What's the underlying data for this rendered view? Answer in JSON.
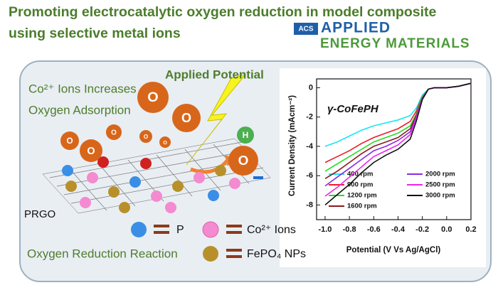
{
  "header": {
    "title_line1": "Promoting electrocatalytic oxygen reduction in model composite",
    "title_line2": "using selective metal ions"
  },
  "logo": {
    "acs": "ACS",
    "line1": "APPLIED",
    "line2": "ENERGY MATERIALS"
  },
  "illustration": {
    "co_line1": "Co²⁺ Ions Increases",
    "co_line2": "Oxygen Adsorption",
    "applied_potential": "Applied Potential",
    "oxygen_symbol": "O",
    "hydrogen_symbol": "H",
    "substrate": "PRGO",
    "reaction": "Oxygen Reduction Reaction",
    "legend_p": "P",
    "legend_co": "Co²⁺ Ions",
    "legend_fepo4": "FePO₄ NPs"
  },
  "chart_data": {
    "type": "line",
    "annotation": "γ-CoFePH",
    "xlabel": "Potential (V Vs Ag/AgCl)",
    "ylabel": "Current Density (mAcm⁻²)",
    "x": [
      -1.0,
      -0.9,
      -0.8,
      -0.7,
      -0.6,
      -0.5,
      -0.4,
      -0.3,
      -0.25,
      -0.2,
      -0.15,
      -0.1,
      0,
      0.1,
      0.2
    ],
    "xlim": [
      -1.07,
      0.2
    ],
    "xticks": [
      {
        "value": -1,
        "label": "-1.0"
      },
      -0.8,
      -0.6,
      -0.4,
      -0.2,
      {
        "value": 0,
        "label": "0.0"
      },
      0.2
    ],
    "ylim": [
      -9,
      0.6
    ],
    "yticks": [
      0,
      -2,
      -4,
      -6,
      -8
    ],
    "series": [
      {
        "name": "400 rpm",
        "color": "#19e6f0",
        "values": [
          -4.0,
          -3.7,
          -3.3,
          -2.9,
          -2.6,
          -2.4,
          -2.2,
          -1.9,
          -1.4,
          -0.5,
          -0.1,
          0,
          0,
          0.1,
          0.3
        ]
      },
      {
        "name": "900 rpm",
        "color": "#ee1c24",
        "values": [
          -5.1,
          -4.7,
          -4.3,
          -3.8,
          -3.4,
          -3.1,
          -2.8,
          -2.3,
          -1.6,
          -0.6,
          -0.1,
          0,
          0,
          0.1,
          0.3
        ]
      },
      {
        "name": "1200 rpm",
        "color": "#22dd22",
        "values": [
          -5.7,
          -5.2,
          -4.7,
          -4.2,
          -3.7,
          -3.4,
          -3.1,
          -2.6,
          -1.8,
          -0.6,
          -0.1,
          0,
          0,
          0.1,
          0.3
        ]
      },
      {
        "name": "1600 rpm",
        "color": "#8b1a1a",
        "values": [
          -6.2,
          -5.7,
          -5.1,
          -4.5,
          -4.0,
          -3.7,
          -3.4,
          -2.8,
          -1.9,
          -0.7,
          -0.1,
          0,
          0,
          0.1,
          0.3
        ]
      },
      {
        "name": "2000 rpm",
        "color": "#8a2be2",
        "values": [
          -6.7,
          -6.1,
          -5.5,
          -4.9,
          -4.3,
          -4.0,
          -3.6,
          -3.0,
          -2.0,
          -0.7,
          -0.1,
          0,
          0,
          0.1,
          0.3
        ]
      },
      {
        "name": "2500 rpm",
        "color": "#ee22ee",
        "values": [
          -7.4,
          -6.8,
          -6.1,
          -5.4,
          -4.7,
          -4.3,
          -3.9,
          -3.2,
          -2.1,
          -0.8,
          -0.1,
          0,
          0,
          0.1,
          0.3
        ]
      },
      {
        "name": "3000 rpm",
        "color": "#111111",
        "values": [
          -8.0,
          -7.3,
          -6.6,
          -5.8,
          -5.1,
          -4.6,
          -4.2,
          -3.5,
          -2.3,
          -0.8,
          -0.1,
          0,
          0,
          0.1,
          0.3
        ]
      }
    ]
  }
}
